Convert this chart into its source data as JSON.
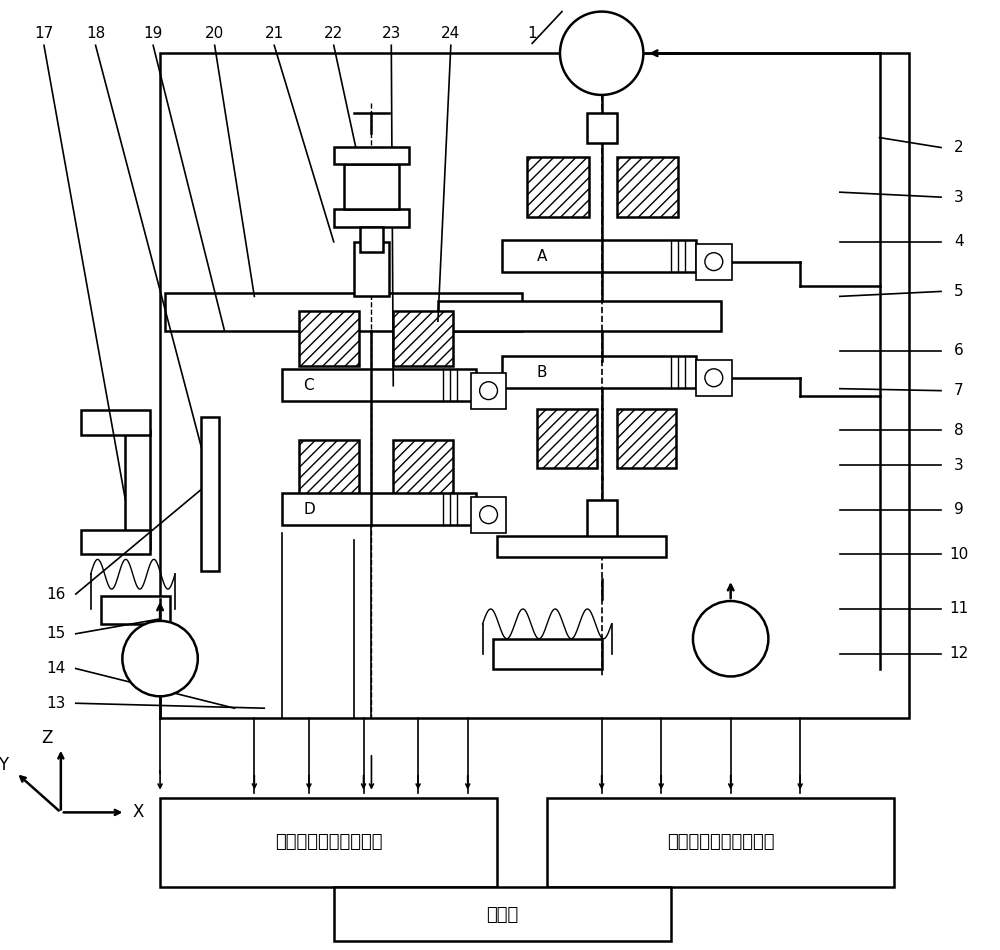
{
  "bg_color": "#ffffff",
  "box1_label": "高速同步数据采集系统",
  "box2_label": "伺服电机驱动控制系统",
  "box3_label": "计算机",
  "font_size": 13
}
